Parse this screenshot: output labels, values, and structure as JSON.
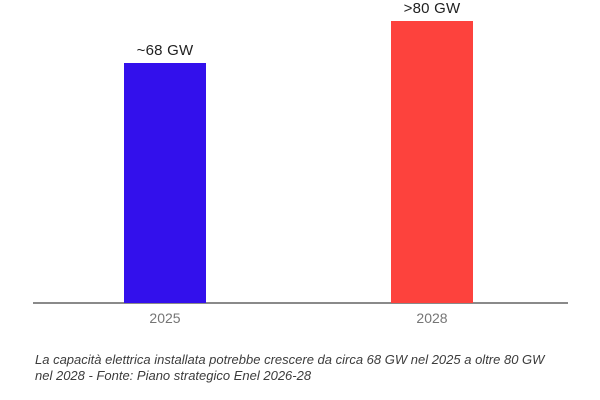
{
  "chart_data": {
    "type": "bar",
    "categories": [
      "2025",
      "2028"
    ],
    "values": [
      68,
      80
    ],
    "value_labels": [
      "~68 GW",
      ">80 GW"
    ],
    "bar_colors": [
      "#3310EC",
      "#FD423D"
    ],
    "title": "",
    "xlabel": "",
    "ylabel": "",
    "ylim": [
      0,
      80
    ],
    "grid": false,
    "legend": "none",
    "axis_color": "#8A8A8A",
    "category_label_color": "#757575",
    "value_label_color": "#1F1F1F",
    "caption_color": "#3C3C3C",
    "background": "#FFFFFF",
    "caption": "La capacità elettrica installata potrebbe crescere da circa 68 GW nel 2025 a oltre 80 GW nel 2028 - Fonte: Piano strategico Enel 2026-28"
  }
}
